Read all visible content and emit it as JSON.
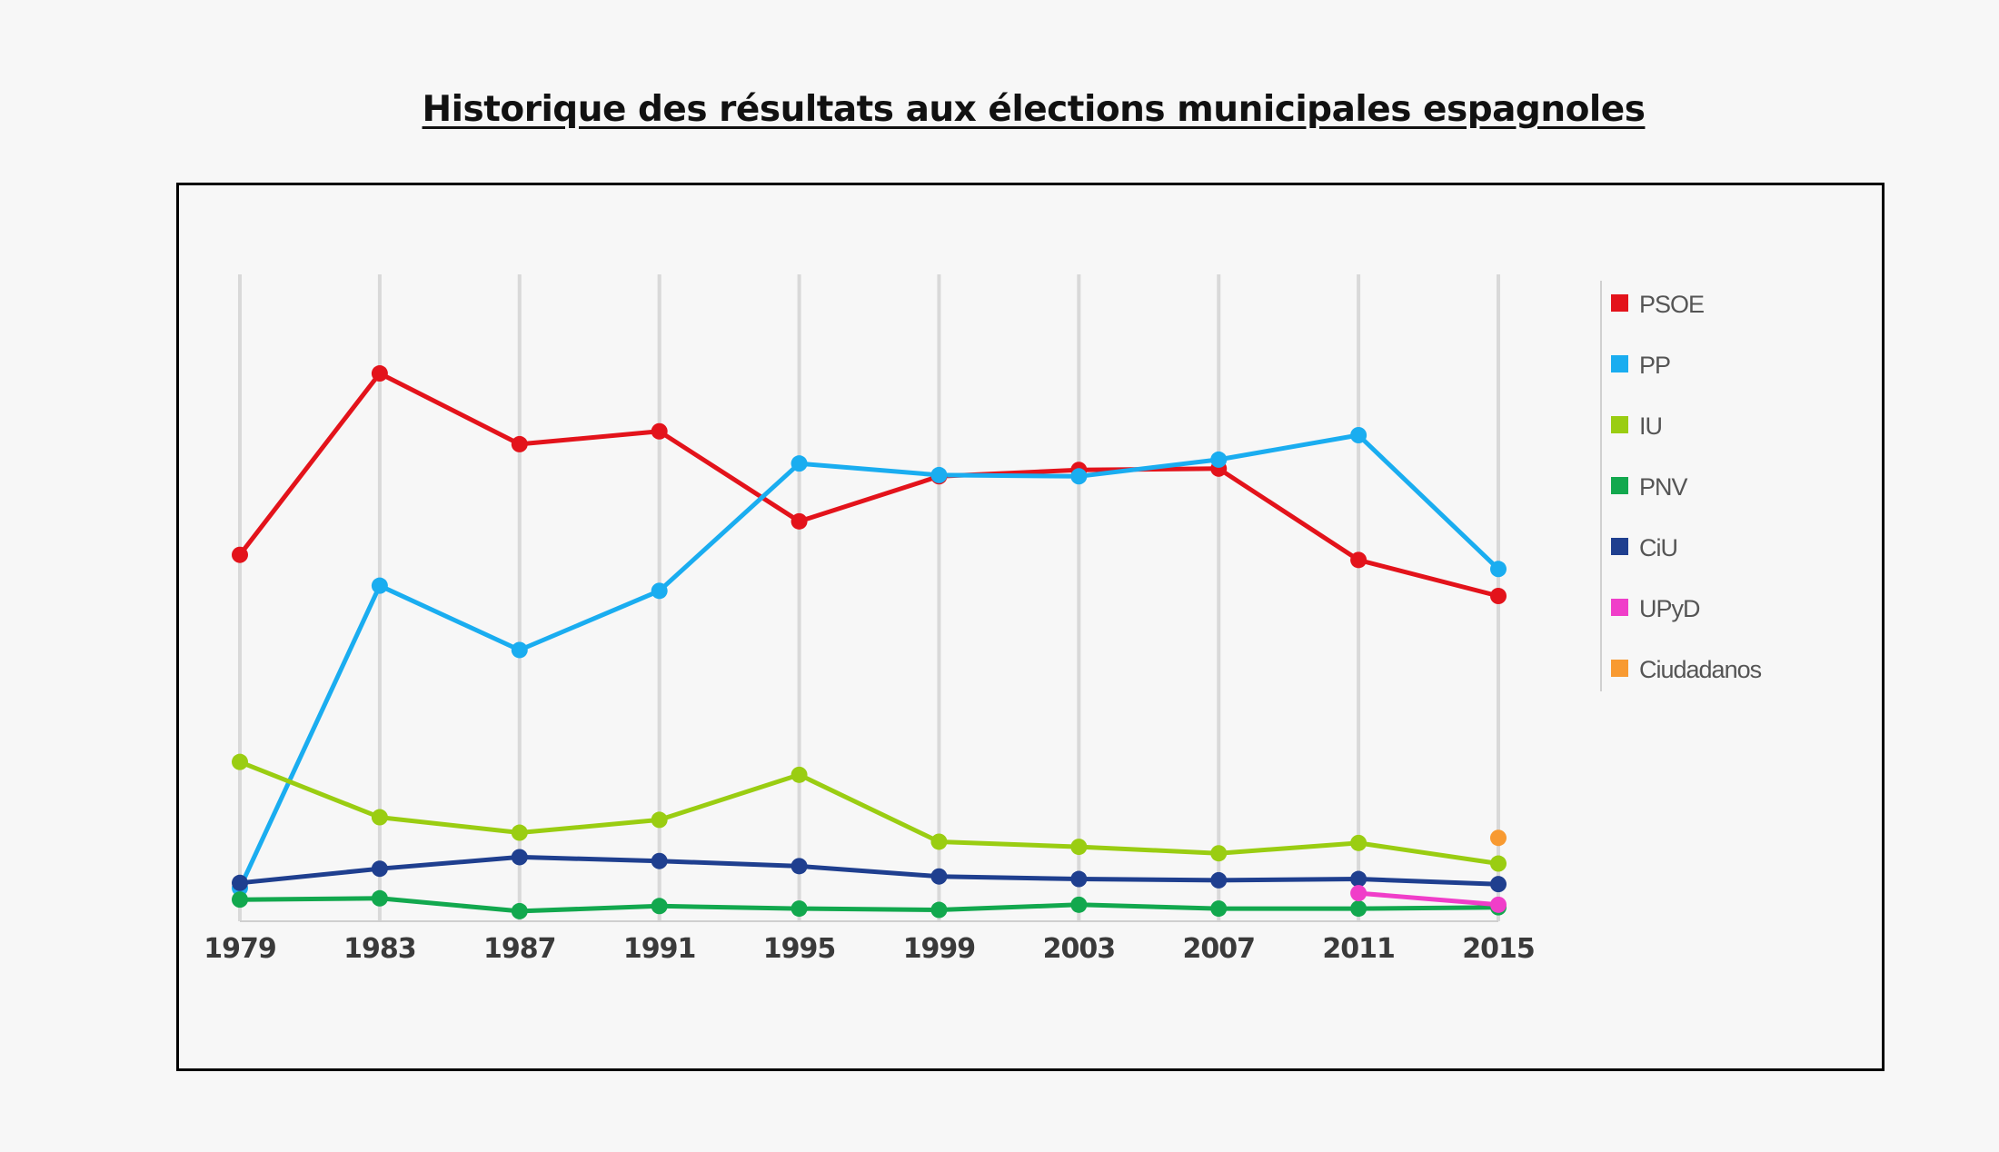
{
  "title": "Historique des résultats aux élections municipales espagnoles",
  "chart_data": {
    "type": "line",
    "title": "Historique des résultats aux élections municipales espagnoles",
    "xlabel": "",
    "ylabel": "",
    "x": [
      "1979",
      "1983",
      "1987",
      "1991",
      "1995",
      "1999",
      "2003",
      "2007",
      "2011",
      "2015"
    ],
    "ylim": [
      0,
      50
    ],
    "grid": "vertical",
    "legend_position": "right",
    "series": [
      {
        "name": "PSOE",
        "color": "#e3131b",
        "values": [
          28.2,
          42.3,
          36.8,
          37.8,
          30.8,
          34.3,
          34.8,
          34.9,
          27.8,
          25.0
        ]
      },
      {
        "name": "PP",
        "color": "#1aadf0",
        "values": [
          2.3,
          25.8,
          20.8,
          25.4,
          35.3,
          34.4,
          34.3,
          35.6,
          37.5,
          27.1
        ]
      },
      {
        "name": "IU",
        "color": "#9acd12",
        "values": [
          12.1,
          7.8,
          6.6,
          7.6,
          11.1,
          5.9,
          5.5,
          5.0,
          5.8,
          4.2
        ]
      },
      {
        "name": "PNV",
        "color": "#12a84e",
        "values": [
          1.4,
          1.5,
          0.5,
          0.9,
          0.7,
          0.6,
          1.0,
          0.7,
          0.7,
          0.8
        ]
      },
      {
        "name": "CiU",
        "color": "#1f3f8f",
        "values": [
          2.7,
          3.8,
          4.7,
          4.4,
          4.0,
          3.2,
          3.0,
          2.9,
          3.0,
          2.6
        ]
      },
      {
        "name": "UPyD",
        "color": "#f03ec9",
        "values": [
          null,
          null,
          null,
          null,
          null,
          null,
          null,
          null,
          1.9,
          1.0
        ]
      },
      {
        "name": "Ciudadanos",
        "color": "#f89a31",
        "values": [
          null,
          null,
          null,
          null,
          null,
          null,
          null,
          null,
          null,
          6.2
        ]
      }
    ]
  }
}
